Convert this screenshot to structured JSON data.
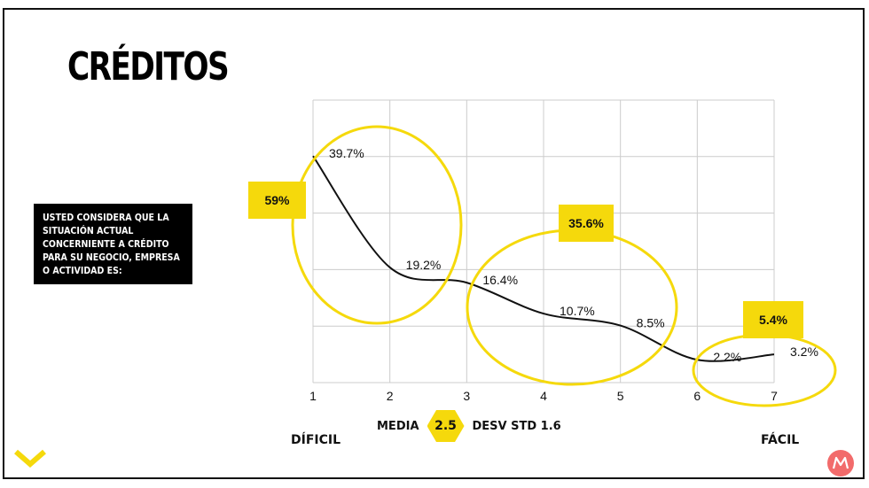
{
  "title": "CRÉDITOS",
  "question": "USTED CONSIDERA QUE LA SITUACIÓN ACTUAL CONCERNIENTE A CRÉDITO PARA SU NEGOCIO, EMPRESA O ACTIVIDAD ES:",
  "stats": {
    "mean_label": "MEDIA",
    "mean_value": "2.5",
    "sd_label": "DESV STD 1.6"
  },
  "axis_ends": {
    "left": "DÍFICIL",
    "right": "FÁCIL"
  },
  "colors": {
    "accent": "#F5D90C",
    "line": "#111111",
    "grid": "#CCCCCC"
  },
  "icons": {
    "bottom_left": "chevron-down-icon",
    "bottom_right": "brand-logo-icon"
  },
  "chart_data": {
    "type": "line",
    "x": [
      1,
      2,
      3,
      4,
      5,
      6,
      7
    ],
    "values": [
      39.7,
      19.2,
      16.4,
      10.7,
      8.5,
      2.2,
      3.2
    ],
    "data_labels": [
      "39.7%",
      "19.2%",
      "16.4%",
      "10.7%",
      "8.5%",
      "2.2%",
      "3.2%"
    ],
    "xlim": [
      1,
      7
    ],
    "ylim": [
      -2,
      50
    ],
    "grid": true,
    "groups": [
      {
        "label": "59%",
        "points": [
          1,
          2
        ]
      },
      {
        "label": "35.6%",
        "points": [
          3,
          4,
          5
        ]
      },
      {
        "label": "5.4%",
        "points": [
          6,
          7
        ]
      }
    ]
  }
}
